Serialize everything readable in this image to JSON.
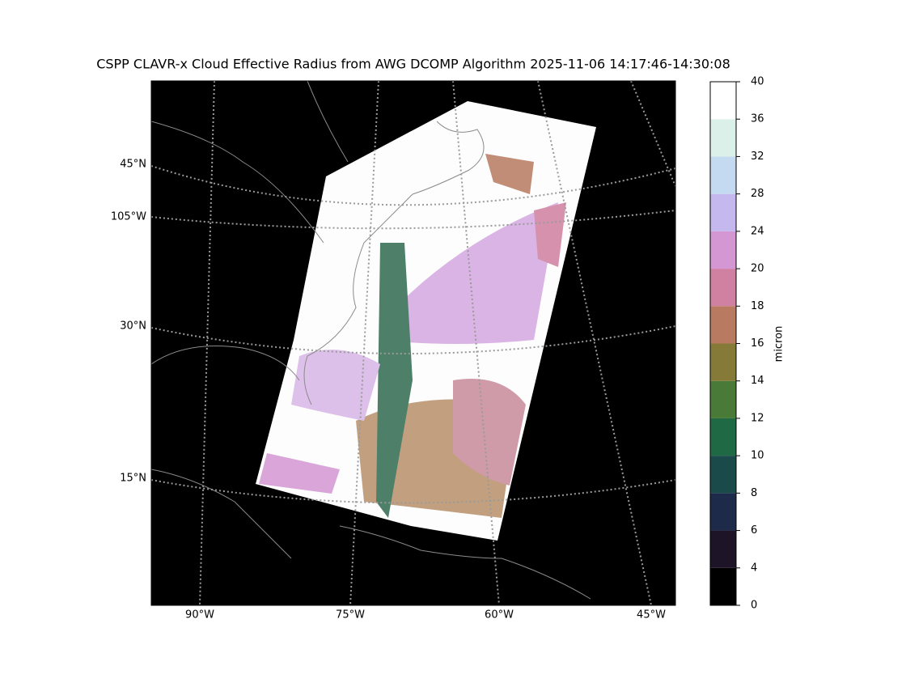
{
  "title": "CSPP CLAVR-x Cloud Effective Radius from AWG DCOMP Algorithm 2025-11-06 14:17:46-14:30:08",
  "map": {
    "lat_labels": [
      "45°N",
      "105°W",
      "30°N",
      "15°N"
    ],
    "lon_labels": [
      "90°W",
      "75°W",
      "60°W",
      "45°W"
    ]
  },
  "colorbar": {
    "label": "micron",
    "boundaries": [
      0,
      4,
      6,
      8,
      10,
      12,
      14,
      16,
      18,
      20,
      24,
      28,
      32,
      36,
      40
    ],
    "colors": [
      "#000000",
      "#1e1428",
      "#1e2a4a",
      "#1a4a4a",
      "#1f6a45",
      "#4a7a38",
      "#857a38",
      "#b87a60",
      "#d080a0",
      "#d497d4",
      "#c4b8ee",
      "#c4daf0",
      "#dcf0ea",
      "#ffffff"
    ]
  }
}
